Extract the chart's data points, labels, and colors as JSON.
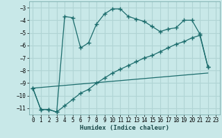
{
  "xlabel": "Humidex (Indice chaleur)",
  "background_color": "#c8e8e8",
  "grid_color": "#b0d4d4",
  "line_color": "#1a6b6b",
  "xlim": [
    -0.5,
    23.5
  ],
  "ylim": [
    -11.5,
    -2.5
  ],
  "yticks": [
    -11,
    -10,
    -9,
    -8,
    -7,
    -6,
    -5,
    -4,
    -3
  ],
  "xticks": [
    0,
    1,
    2,
    3,
    4,
    5,
    6,
    7,
    8,
    9,
    10,
    11,
    12,
    13,
    14,
    15,
    16,
    17,
    18,
    19,
    20,
    21,
    22,
    23
  ],
  "line1_x": [
    0,
    1,
    2,
    3,
    4,
    5,
    6,
    7,
    8,
    9,
    10,
    11,
    12,
    13,
    14,
    15,
    16,
    17,
    18,
    19,
    20,
    21,
    22
  ],
  "line1_y": [
    -9.4,
    -11.1,
    -11.1,
    -11.3,
    -3.7,
    -3.8,
    -6.2,
    -5.8,
    -4.3,
    -3.5,
    -3.1,
    -3.1,
    -3.7,
    -3.9,
    -4.1,
    -4.5,
    -4.9,
    -4.7,
    -4.6,
    -4.0,
    -4.0,
    -5.1,
    -7.7
  ],
  "line2_x": [
    0,
    1,
    2,
    3,
    4,
    5,
    6,
    7,
    8,
    9,
    10,
    11,
    12,
    13,
    14,
    15,
    16,
    17,
    18,
    19,
    20,
    21,
    22
  ],
  "line2_y": [
    -9.4,
    -11.1,
    -11.1,
    -11.3,
    -10.8,
    -10.3,
    -9.8,
    -9.5,
    -9.0,
    -8.6,
    -8.2,
    -7.9,
    -7.6,
    -7.3,
    -7.0,
    -6.8,
    -6.5,
    -6.2,
    -5.9,
    -5.7,
    -5.4,
    -5.2,
    -7.7
  ],
  "line3_x": [
    0,
    22
  ],
  "line3_y": [
    -9.4,
    -8.2
  ]
}
